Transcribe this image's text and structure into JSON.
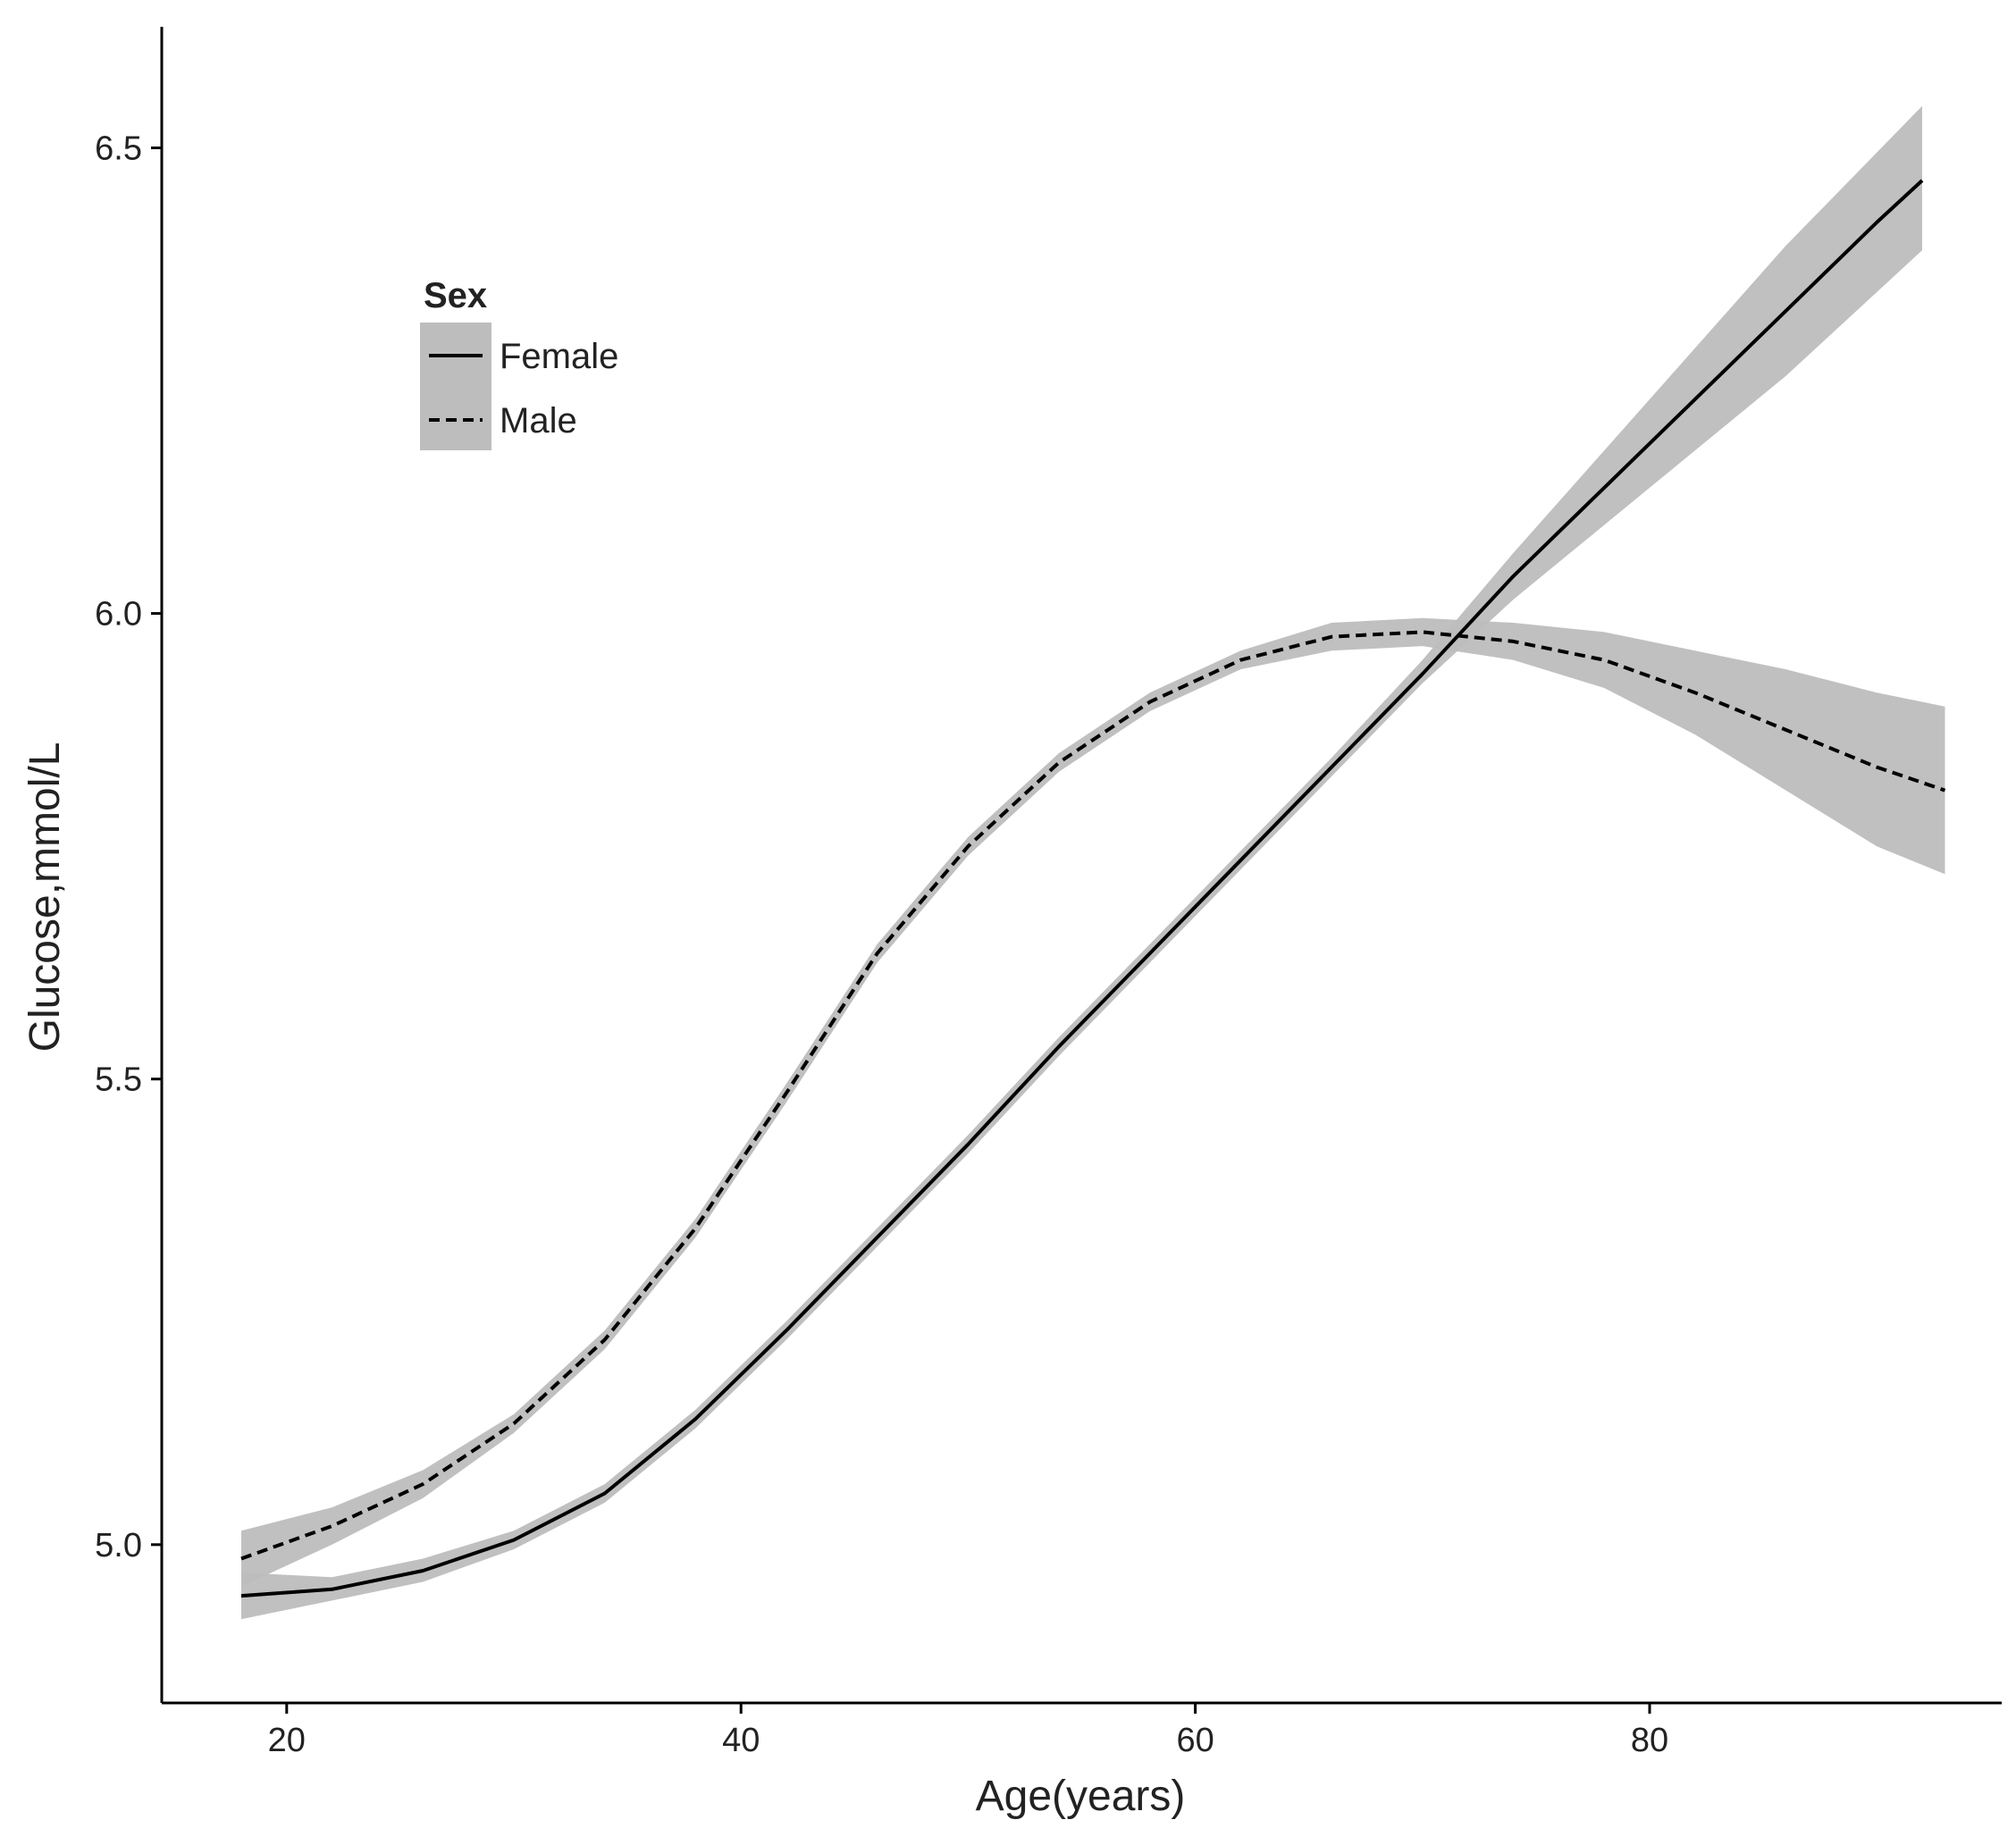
{
  "chart_data": {
    "type": "line",
    "xlabel": "Age(years)",
    "ylabel": "Glucose,mmol/L",
    "xlim": [
      14.5,
      95.5
    ],
    "ylim": [
      4.83,
      6.63
    ],
    "x_ticks": [
      20,
      40,
      60,
      80
    ],
    "x_tick_labels": [
      "20",
      "40",
      "60",
      "80"
    ],
    "y_ticks": [
      5.0,
      5.5,
      6.0,
      6.5
    ],
    "y_tick_labels": [
      "5.0",
      "5.5",
      "6.0",
      "6.5"
    ],
    "grid": false,
    "legend": {
      "title": "Sex",
      "placement": "top-left",
      "entries": [
        "Female",
        "Male"
      ]
    },
    "series": [
      {
        "name": "Female",
        "line_style": "solid",
        "color": "#000000",
        "band_color": "#bdbdbd",
        "x": [
          18,
          22,
          26,
          30,
          34,
          38,
          42,
          46,
          50,
          54,
          58,
          62,
          66,
          70,
          74,
          78,
          82,
          86,
          90,
          92
        ],
        "y": [
          4.945,
          4.952,
          4.972,
          5.005,
          5.055,
          5.135,
          5.23,
          5.33,
          5.43,
          5.535,
          5.635,
          5.735,
          5.835,
          5.935,
          6.04,
          6.135,
          6.23,
          6.325,
          6.42,
          6.465
        ],
        "lower": [
          4.92,
          4.94,
          4.96,
          4.995,
          5.045,
          5.125,
          5.22,
          5.32,
          5.42,
          5.525,
          5.625,
          5.725,
          5.825,
          5.925,
          6.015,
          6.095,
          6.175,
          6.255,
          6.345,
          6.39
        ],
        "upper": [
          4.97,
          4.965,
          4.985,
          5.015,
          5.065,
          5.145,
          5.24,
          5.34,
          5.44,
          5.545,
          5.645,
          5.745,
          5.845,
          5.95,
          6.065,
          6.175,
          6.285,
          6.395,
          6.495,
          6.545
        ]
      },
      {
        "name": "Male",
        "line_style": "dashed",
        "color": "#000000",
        "band_color": "#bdbdbd",
        "x": [
          18,
          22,
          26,
          30,
          34,
          38,
          42,
          46,
          50,
          54,
          58,
          62,
          66,
          70,
          74,
          78,
          82,
          86,
          90,
          93
        ],
        "y": [
          4.985,
          5.02,
          5.065,
          5.13,
          5.22,
          5.34,
          5.485,
          5.635,
          5.75,
          5.84,
          5.905,
          5.95,
          5.975,
          5.98,
          5.97,
          5.95,
          5.915,
          5.875,
          5.835,
          5.81
        ],
        "lower": [
          4.955,
          5.0,
          5.05,
          5.12,
          5.21,
          5.33,
          5.475,
          5.625,
          5.74,
          5.83,
          5.895,
          5.94,
          5.96,
          5.965,
          5.95,
          5.92,
          5.87,
          5.81,
          5.75,
          5.72
        ],
        "upper": [
          5.015,
          5.04,
          5.08,
          5.14,
          5.23,
          5.35,
          5.495,
          5.645,
          5.76,
          5.85,
          5.915,
          5.96,
          5.99,
          5.995,
          5.99,
          5.98,
          5.96,
          5.94,
          5.915,
          5.9
        ]
      }
    ]
  }
}
